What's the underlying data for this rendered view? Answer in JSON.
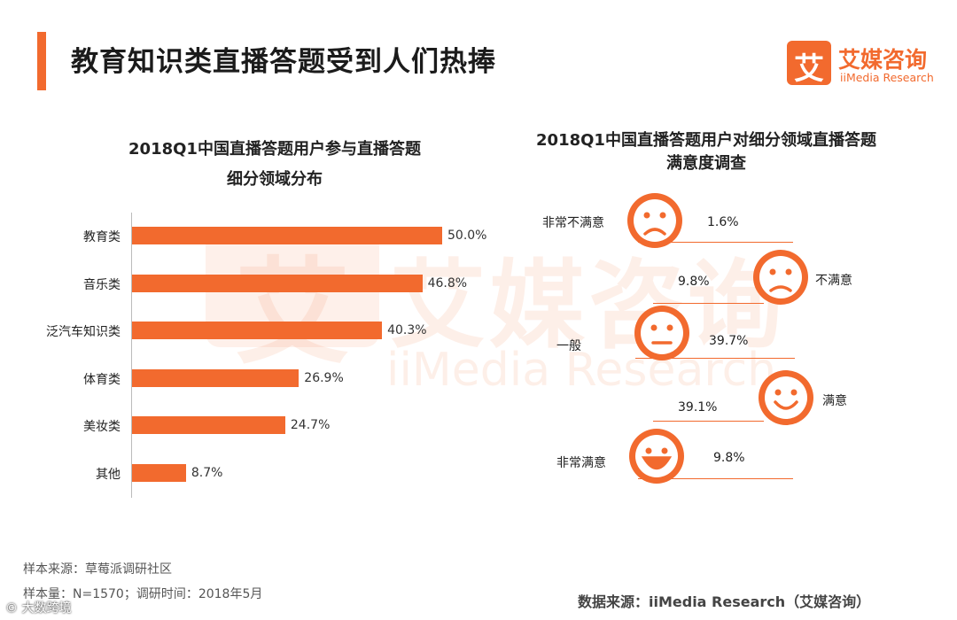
{
  "header": {
    "title": "教育知识类直播答题受到人们热捧",
    "logo_glyph": "艾",
    "logo_cn": "艾媒咨询",
    "logo_en": "iiMedia Research"
  },
  "watermark": {
    "glyph": "艾",
    "cn": "艾媒咨询",
    "en": "iiMedia Research"
  },
  "chart_data": [
    {
      "type": "bar",
      "title": "2018Q1中国直播答题用户参与直播答题细分领域分布",
      "title_lines": [
        "2018Q1中国直播答题用户参与直播答题",
        "细分领域分布"
      ],
      "orientation": "horizontal",
      "categories": [
        "教育类",
        "音乐类",
        "泛汽车知识类",
        "体育类",
        "美妆类",
        "其他"
      ],
      "values": [
        50.0,
        46.8,
        40.3,
        26.9,
        24.7,
        8.7
      ],
      "value_labels": [
        "50.0%",
        "46.8%",
        "40.3%",
        "26.9%",
        "24.7%",
        "8.7%"
      ],
      "unit": "%",
      "xlim": [
        0,
        50
      ],
      "color": "#f26a2e",
      "grid": false
    },
    {
      "type": "bar",
      "title": "2018Q1中国直播答题用户对细分领域直播答题满意度调查",
      "title_lines": [
        "2018Q1中国直播答题用户对细分领域直播答题",
        "满意度调查"
      ],
      "categories": [
        "非常不满意",
        "不满意",
        "一般",
        "满意",
        "非常满意"
      ],
      "values": [
        1.6,
        9.8,
        39.7,
        39.1,
        9.8
      ],
      "value_labels": [
        "1.6%",
        "9.8%",
        "39.7%",
        "39.1%",
        "9.8%"
      ],
      "icons": [
        "very-sad-face-icon",
        "sad-face-icon",
        "neutral-face-icon",
        "smile-face-icon",
        "very-happy-face-icon"
      ],
      "unit": "%",
      "color": "#f26a2e"
    }
  ],
  "footer": {
    "sample_source": "样本来源：草莓派调研社区",
    "sample_size": "样本量：N=1570；调研时间：2018年5月",
    "data_source": "数据来源：iiMedia Research（艾媒咨询）",
    "corner_mark": "© 大数跨境"
  }
}
